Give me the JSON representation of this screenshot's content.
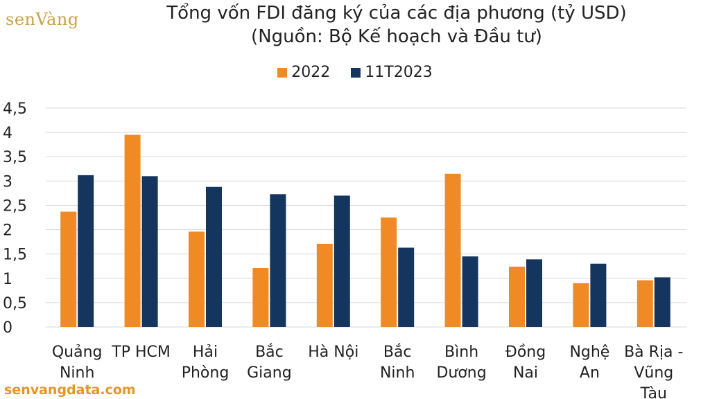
{
  "logo": {
    "text": "senVàng"
  },
  "watermark": {
    "text": "senvangdata.com"
  },
  "colors": {
    "s2022": "#f08a24",
    "s2023": "#14365e",
    "grid": "#d9d9d9",
    "axis_text": "#222222"
  },
  "chart_data": {
    "type": "bar",
    "title": "Tổng vốn FDI đăng ký của các địa phương (tỷ USD)",
    "subtitle": "(Nguồn: Bộ Kế hoạch và Đầu tư)",
    "xlabel": "",
    "ylabel": "",
    "ylim": [
      0,
      4.5
    ],
    "yticks": [
      "0",
      "0,5",
      "1",
      "1,5",
      "2",
      "2,5",
      "3",
      "3,5",
      "4",
      "4,5"
    ],
    "grid": true,
    "legend_position": "top-center",
    "categories": [
      [
        "Quảng",
        "Ninh"
      ],
      [
        "TP HCM"
      ],
      [
        "Hải",
        "Phòng"
      ],
      [
        "Bắc",
        "Giang"
      ],
      [
        "Hà Nội"
      ],
      [
        "Bắc",
        "Ninh"
      ],
      [
        "Bình",
        "Dương"
      ],
      [
        "Đồng",
        "Nai"
      ],
      [
        "Nghệ",
        "An"
      ],
      [
        "Bà Rịa -",
        "Vũng",
        "Tàu"
      ]
    ],
    "series": [
      {
        "name": "2022",
        "values": [
          2.37,
          3.95,
          1.96,
          1.21,
          1.71,
          2.25,
          3.15,
          1.24,
          0.9,
          0.96
        ]
      },
      {
        "name": "11T2023",
        "values": [
          3.12,
          3.1,
          2.88,
          2.73,
          2.7,
          1.63,
          1.45,
          1.39,
          1.3,
          1.02
        ]
      }
    ]
  }
}
